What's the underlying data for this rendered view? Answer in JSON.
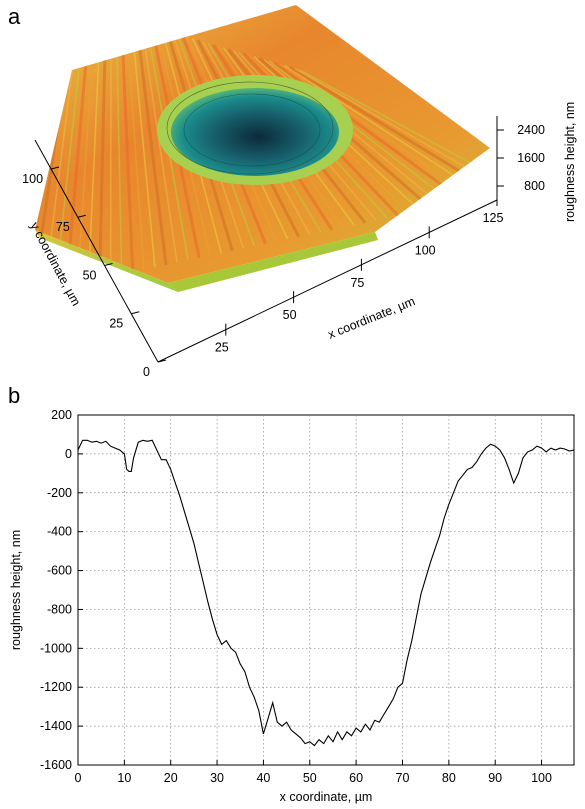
{
  "panels": {
    "a_label": "a",
    "b_label": "b"
  },
  "chart_data": [
    {
      "type": "surface",
      "panel": "a",
      "xlabel": "x coordinate, µm",
      "ylabel": "y coordinate, µm",
      "zlabel": "roughness height, nm",
      "x_ticks": [
        "25",
        "50",
        "75",
        "100",
        "125"
      ],
      "y_ticks": [
        "0",
        "25",
        "50",
        "75",
        "100"
      ],
      "z_ticks": [
        "800",
        "1600",
        "2400"
      ],
      "xlim": [
        0,
        125
      ],
      "ylim": [
        0,
        115
      ],
      "colors": {
        "high": "#e8702a",
        "mid": "#e8c832",
        "low_rim": "#8ccc3c",
        "crater": "#1a8c8c",
        "crater_bottom": "#0c2a3a"
      }
    },
    {
      "type": "line",
      "panel": "b",
      "xlabel": "x coordinate, µm",
      "ylabel": "roughness height, nm",
      "xlim": [
        0,
        107
      ],
      "ylim": [
        -1600,
        200
      ],
      "x_ticks": [
        "0",
        "10",
        "20",
        "30",
        "40",
        "50",
        "60",
        "70",
        "80",
        "90",
        "100"
      ],
      "y_ticks": [
        "200",
        "0",
        "-200",
        "-400",
        "-600",
        "-800",
        "-1000",
        "-1200",
        "-1400",
        "-1600"
      ],
      "grid": true,
      "x": [
        0,
        1,
        2,
        3,
        4,
        5,
        6,
        7,
        8,
        9,
        10,
        10.5,
        11,
        11.5,
        12,
        13,
        14,
        15,
        16,
        17,
        18,
        19,
        20,
        21,
        22,
        23,
        24,
        25,
        26,
        27,
        28,
        29,
        30,
        31,
        32,
        33,
        34,
        35,
        36,
        37,
        38,
        39,
        40,
        41,
        42,
        43,
        44,
        45,
        46,
        47,
        48,
        49,
        50,
        51,
        52,
        53,
        54,
        55,
        56,
        57,
        58,
        59,
        60,
        61,
        62,
        63,
        64,
        65,
        66,
        67,
        68,
        69,
        70,
        71,
        72,
        73,
        74,
        75,
        76,
        77,
        78,
        79,
        80,
        81,
        82,
        83,
        84,
        85,
        86,
        87,
        88,
        89,
        90,
        91,
        92,
        93,
        94,
        95,
        96,
        97,
        98,
        99,
        100,
        101,
        102,
        103,
        104,
        105,
        106,
        107
      ],
      "y": [
        20,
        70,
        70,
        60,
        65,
        55,
        65,
        40,
        30,
        20,
        0,
        -80,
        -90,
        -90,
        -20,
        60,
        70,
        65,
        70,
        20,
        -30,
        -30,
        -80,
        -150,
        -220,
        -300,
        -380,
        -460,
        -560,
        -660,
        -760,
        -850,
        -930,
        -980,
        -960,
        -1000,
        -1020,
        -1080,
        -1120,
        -1200,
        -1250,
        -1320,
        -1440,
        -1360,
        -1280,
        -1380,
        -1400,
        -1380,
        -1420,
        -1440,
        -1460,
        -1490,
        -1480,
        -1500,
        -1470,
        -1490,
        -1450,
        -1480,
        -1430,
        -1470,
        -1430,
        -1450,
        -1410,
        -1430,
        -1390,
        -1420,
        -1370,
        -1380,
        -1340,
        -1300,
        -1260,
        -1200,
        -1180,
        -1060,
        -960,
        -840,
        -720,
        -640,
        -560,
        -490,
        -420,
        -330,
        -260,
        -200,
        -140,
        -110,
        -80,
        -70,
        -40,
        0,
        30,
        50,
        40,
        20,
        -20,
        -80,
        -150,
        -100,
        -20,
        10,
        20,
        40,
        30,
        10,
        30,
        20,
        30,
        25,
        15,
        20
      ]
    }
  ]
}
